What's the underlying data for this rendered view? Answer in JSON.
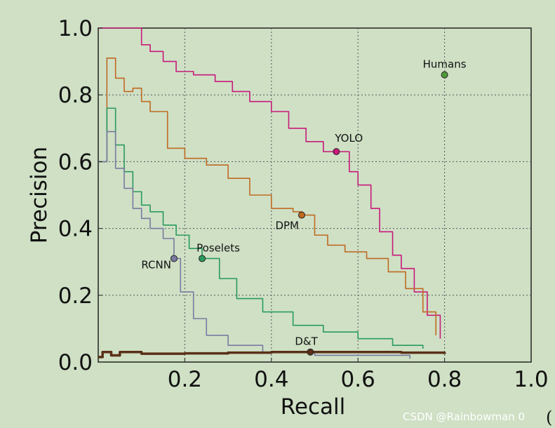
{
  "chart_data": {
    "type": "line",
    "xlabel": "Recall",
    "ylabel": "Precision",
    "xlim": [
      0.0,
      1.0
    ],
    "ylim": [
      0.0,
      1.0
    ],
    "xticks": [
      "0.2",
      "0.4",
      "0.6",
      "0.8",
      "1.0"
    ],
    "yticks": [
      "0.0",
      "0.2",
      "0.4",
      "0.6",
      "0.8",
      "1.0"
    ],
    "grid": true,
    "series": [
      {
        "name": "YOLO",
        "color": "#c8197a",
        "marker": {
          "x": 0.55,
          "y": 0.63
        },
        "points": [
          [
            0.0,
            1.0
          ],
          [
            0.09,
            1.0
          ],
          [
            0.1,
            0.95
          ],
          [
            0.12,
            0.93
          ],
          [
            0.15,
            0.9
          ],
          [
            0.18,
            0.87
          ],
          [
            0.22,
            0.86
          ],
          [
            0.27,
            0.84
          ],
          [
            0.31,
            0.81
          ],
          [
            0.35,
            0.78
          ],
          [
            0.4,
            0.75
          ],
          [
            0.44,
            0.7
          ],
          [
            0.48,
            0.66
          ],
          [
            0.52,
            0.63
          ],
          [
            0.55,
            0.63
          ],
          [
            0.58,
            0.57
          ],
          [
            0.6,
            0.53
          ],
          [
            0.63,
            0.46
          ],
          [
            0.65,
            0.39
          ],
          [
            0.68,
            0.32
          ],
          [
            0.7,
            0.28
          ],
          [
            0.73,
            0.21
          ],
          [
            0.76,
            0.14
          ],
          [
            0.79,
            0.07
          ]
        ]
      },
      {
        "name": "DPM",
        "color": "#c06a22",
        "marker": {
          "x": 0.47,
          "y": 0.44
        },
        "points": [
          [
            0.0,
            0.6
          ],
          [
            0.02,
            0.91
          ],
          [
            0.04,
            0.85
          ],
          [
            0.06,
            0.81
          ],
          [
            0.08,
            0.82
          ],
          [
            0.1,
            0.78
          ],
          [
            0.12,
            0.75
          ],
          [
            0.16,
            0.64
          ],
          [
            0.2,
            0.61
          ],
          [
            0.25,
            0.59
          ],
          [
            0.3,
            0.55
          ],
          [
            0.35,
            0.5
          ],
          [
            0.4,
            0.46
          ],
          [
            0.45,
            0.45
          ],
          [
            0.47,
            0.44
          ],
          [
            0.5,
            0.38
          ],
          [
            0.53,
            0.35
          ],
          [
            0.57,
            0.33
          ],
          [
            0.62,
            0.31
          ],
          [
            0.67,
            0.27
          ],
          [
            0.71,
            0.22
          ],
          [
            0.75,
            0.15
          ],
          [
            0.78,
            0.08
          ]
        ]
      },
      {
        "name": "Poselets",
        "color": "#2a9a5e",
        "marker": {
          "x": 0.24,
          "y": 0.31
        },
        "points": [
          [
            0.0,
            0.6
          ],
          [
            0.02,
            0.76
          ],
          [
            0.04,
            0.65
          ],
          [
            0.06,
            0.57
          ],
          [
            0.08,
            0.51
          ],
          [
            0.1,
            0.47
          ],
          [
            0.12,
            0.45
          ],
          [
            0.15,
            0.41
          ],
          [
            0.18,
            0.38
          ],
          [
            0.21,
            0.34
          ],
          [
            0.24,
            0.31
          ],
          [
            0.28,
            0.25
          ],
          [
            0.32,
            0.19
          ],
          [
            0.38,
            0.15
          ],
          [
            0.45,
            0.11
          ],
          [
            0.52,
            0.09
          ],
          [
            0.6,
            0.07
          ],
          [
            0.68,
            0.05
          ],
          [
            0.75,
            0.04
          ]
        ]
      },
      {
        "name": "RCNN",
        "color": "#7a7aa0",
        "marker": {
          "x": 0.175,
          "y": 0.31
        },
        "points": [
          [
            0.0,
            0.6
          ],
          [
            0.02,
            0.69
          ],
          [
            0.04,
            0.58
          ],
          [
            0.06,
            0.52
          ],
          [
            0.08,
            0.46
          ],
          [
            0.1,
            0.43
          ],
          [
            0.12,
            0.4
          ],
          [
            0.15,
            0.37
          ],
          [
            0.175,
            0.31
          ],
          [
            0.19,
            0.21
          ],
          [
            0.22,
            0.13
          ],
          [
            0.25,
            0.08
          ],
          [
            0.3,
            0.05
          ],
          [
            0.38,
            0.03
          ],
          [
            0.5,
            0.02
          ],
          [
            0.72,
            0.01
          ]
        ]
      },
      {
        "name": "D&T",
        "color": "#5a3018",
        "marker": {
          "x": 0.49,
          "y": 0.03
        },
        "points": [
          [
            0.0,
            0.015
          ],
          [
            0.01,
            0.03
          ],
          [
            0.03,
            0.02
          ],
          [
            0.05,
            0.03
          ],
          [
            0.1,
            0.025
          ],
          [
            0.2,
            0.026
          ],
          [
            0.3,
            0.028
          ],
          [
            0.4,
            0.03
          ],
          [
            0.5,
            0.03
          ],
          [
            0.6,
            0.03
          ],
          [
            0.7,
            0.028
          ],
          [
            0.8,
            0.024
          ]
        ]
      }
    ],
    "extra_points": [
      {
        "name": "Humans",
        "x": 0.8,
        "y": 0.86,
        "color": "#4e9a3a"
      }
    ]
  },
  "watermark": "CSDN @Rainbowman 0",
  "corner_glyph": "("
}
